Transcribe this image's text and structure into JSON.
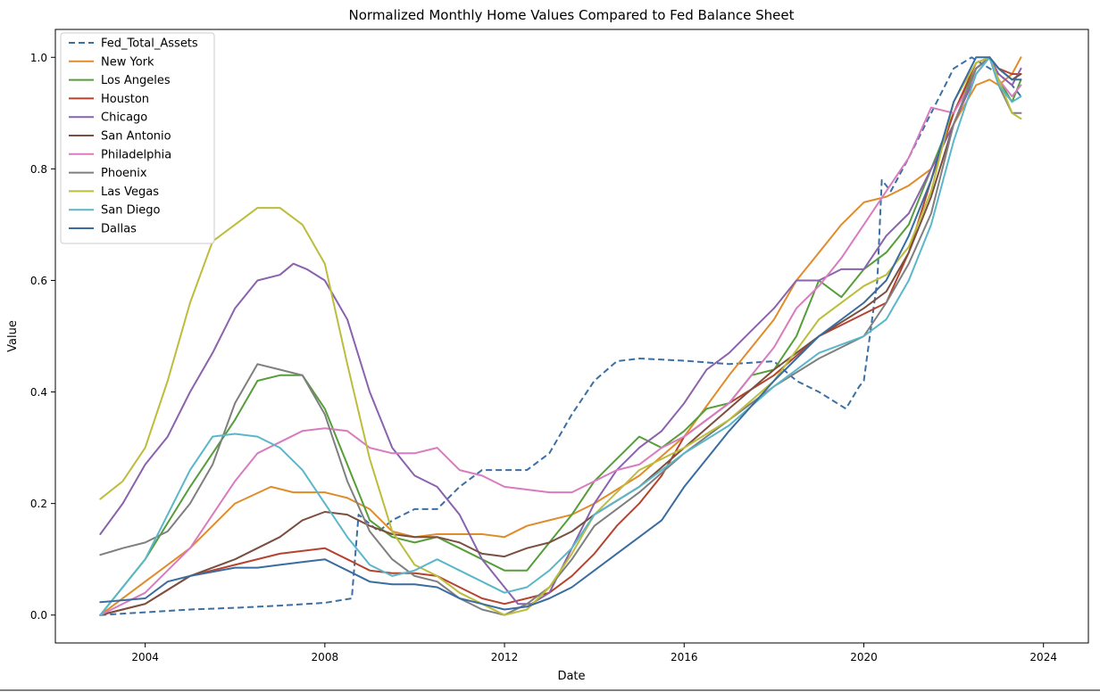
{
  "chart_data": {
    "type": "line",
    "title": "Normalized Monthly Home Values Compared to Fed Balance Sheet",
    "xlabel": "Date",
    "ylabel": "Value",
    "xlim": [
      2002.0,
      2025.0
    ],
    "ylim": [
      -0.05,
      1.05
    ],
    "x_ticks": [
      2004,
      2008,
      2012,
      2016,
      2020,
      2024
    ],
    "x_tick_labels": [
      "2004",
      "2008",
      "2012",
      "2016",
      "2020",
      "2024"
    ],
    "y_ticks": [
      0.0,
      0.2,
      0.4,
      0.6,
      0.8,
      1.0
    ],
    "y_tick_labels": [
      "0.0",
      "0.2",
      "0.4",
      "0.6",
      "0.8",
      "1.0"
    ],
    "grid": false,
    "legend_position": "upper-left",
    "series": [
      {
        "name": "Fed_Total_Assets",
        "color": "#3c6fa3",
        "dashed": true,
        "x": [
          2003.0,
          2004.0,
          2005.0,
          2006.0,
          2007.0,
          2008.0,
          2008.6,
          2008.75,
          2008.9,
          2009.2,
          2009.5,
          2010.0,
          2010.5,
          2011.0,
          2011.5,
          2012.0,
          2012.5,
          2013.0,
          2013.5,
          2014.0,
          2014.5,
          2015.0,
          2016.0,
          2017.0,
          2018.0,
          2018.5,
          2019.0,
          2019.6,
          2019.9,
          2020.0,
          2020.3,
          2020.4,
          2020.6,
          2021.0,
          2021.5,
          2022.0,
          2022.4,
          2022.6,
          2023.0,
          2023.3,
          2023.5
        ],
        "y": [
          0.0,
          0.005,
          0.01,
          0.013,
          0.017,
          0.022,
          0.03,
          0.18,
          0.17,
          0.15,
          0.17,
          0.19,
          0.19,
          0.23,
          0.26,
          0.26,
          0.26,
          0.29,
          0.36,
          0.42,
          0.455,
          0.46,
          0.456,
          0.45,
          0.455,
          0.42,
          0.4,
          0.37,
          0.41,
          0.42,
          0.6,
          0.78,
          0.76,
          0.82,
          0.9,
          0.98,
          1.0,
          0.99,
          0.97,
          0.95,
          0.93
        ]
      },
      {
        "name": "New York",
        "color": "#e08c2b",
        "x": [
          2003.0,
          2004.0,
          2005.0,
          2006.0,
          2006.8,
          2007.3,
          2008.0,
          2008.5,
          2009.0,
          2009.5,
          2010.0,
          2010.5,
          2011.0,
          2011.5,
          2012.0,
          2012.5,
          2013.0,
          2013.5,
          2014.0,
          2015.0,
          2016.0,
          2017.0,
          2018.0,
          2018.5,
          2019.0,
          2019.5,
          2020.0,
          2020.5,
          2021.0,
          2021.5,
          2022.0,
          2022.5,
          2022.8,
          2023.0,
          2023.3,
          2023.5
        ],
        "y": [
          0.0,
          0.06,
          0.12,
          0.2,
          0.23,
          0.22,
          0.22,
          0.21,
          0.19,
          0.15,
          0.14,
          0.145,
          0.145,
          0.145,
          0.14,
          0.16,
          0.17,
          0.18,
          0.2,
          0.25,
          0.32,
          0.43,
          0.53,
          0.6,
          0.65,
          0.7,
          0.74,
          0.75,
          0.77,
          0.8,
          0.88,
          0.95,
          0.96,
          0.95,
          0.97,
          1.0
        ]
      },
      {
        "name": "Los Angeles",
        "color": "#559e3a",
        "x": [
          2003.0,
          2004.0,
          2005.0,
          2006.0,
          2006.5,
          2007.0,
          2007.5,
          2008.0,
          2008.5,
          2009.0,
          2009.5,
          2010.0,
          2010.5,
          2011.0,
          2011.5,
          2012.0,
          2012.5,
          2013.0,
          2013.5,
          2014.0,
          2014.5,
          2015.0,
          2015.5,
          2016.0,
          2016.5,
          2017.0,
          2017.5,
          2018.0,
          2018.5,
          2019.0,
          2019.5,
          2020.0,
          2020.5,
          2021.0,
          2021.5,
          2022.0,
          2022.5,
          2022.8,
          2023.0,
          2023.3,
          2023.5
        ],
        "y": [
          0.0,
          0.1,
          0.23,
          0.35,
          0.42,
          0.43,
          0.43,
          0.37,
          0.27,
          0.17,
          0.14,
          0.13,
          0.14,
          0.12,
          0.1,
          0.08,
          0.08,
          0.13,
          0.18,
          0.24,
          0.28,
          0.32,
          0.3,
          0.33,
          0.37,
          0.38,
          0.43,
          0.44,
          0.5,
          0.6,
          0.57,
          0.62,
          0.65,
          0.7,
          0.8,
          0.9,
          0.98,
          1.0,
          0.96,
          0.92,
          0.96
        ]
      },
      {
        "name": "Houston",
        "color": "#b5432f",
        "x": [
          2003.0,
          2004.0,
          2005.0,
          2006.0,
          2007.0,
          2008.0,
          2008.5,
          2009.0,
          2009.5,
          2010.0,
          2010.5,
          2011.0,
          2011.5,
          2012.0,
          2012.5,
          2013.0,
          2013.5,
          2014.0,
          2014.5,
          2015.0,
          2015.5,
          2016.0,
          2017.0,
          2018.0,
          2019.0,
          2020.0,
          2020.5,
          2021.0,
          2021.5,
          2022.0,
          2022.5,
          2022.8,
          2023.0,
          2023.3,
          2023.5
        ],
        "y": [
          0.0,
          0.02,
          0.07,
          0.09,
          0.11,
          0.12,
          0.1,
          0.08,
          0.075,
          0.075,
          0.07,
          0.05,
          0.03,
          0.02,
          0.03,
          0.04,
          0.07,
          0.11,
          0.16,
          0.2,
          0.25,
          0.32,
          0.38,
          0.43,
          0.5,
          0.54,
          0.56,
          0.65,
          0.78,
          0.9,
          0.99,
          1.0,
          0.98,
          0.97,
          0.97
        ]
      },
      {
        "name": "Chicago",
        "color": "#8a62ad",
        "x": [
          2003.0,
          2003.5,
          2004.0,
          2004.5,
          2005.0,
          2005.5,
          2006.0,
          2006.5,
          2007.0,
          2007.3,
          2007.6,
          2008.0,
          2008.5,
          2009.0,
          2009.5,
          2010.0,
          2010.5,
          2011.0,
          2011.5,
          2012.0,
          2012.3,
          2012.6,
          2013.0,
          2013.5,
          2014.0,
          2014.5,
          2015.0,
          2015.5,
          2016.0,
          2016.5,
          2017.0,
          2017.5,
          2018.0,
          2018.5,
          2019.0,
          2019.5,
          2020.0,
          2020.5,
          2021.0,
          2021.5,
          2022.0,
          2022.5,
          2022.8,
          2023.0,
          2023.3,
          2023.5
        ],
        "y": [
          0.145,
          0.2,
          0.27,
          0.32,
          0.4,
          0.47,
          0.55,
          0.6,
          0.61,
          0.63,
          0.62,
          0.6,
          0.53,
          0.4,
          0.3,
          0.25,
          0.23,
          0.18,
          0.1,
          0.05,
          0.02,
          0.02,
          0.04,
          0.12,
          0.2,
          0.26,
          0.3,
          0.33,
          0.38,
          0.44,
          0.47,
          0.51,
          0.55,
          0.6,
          0.6,
          0.62,
          0.62,
          0.68,
          0.72,
          0.8,
          0.88,
          0.97,
          1.0,
          0.97,
          0.95,
          0.98
        ]
      },
      {
        "name": "San Antonio",
        "color": "#7b4f3f",
        "x": [
          2003.0,
          2004.0,
          2005.0,
          2006.0,
          2007.0,
          2007.5,
          2008.0,
          2008.5,
          2009.0,
          2009.5,
          2010.0,
          2010.5,
          2011.0,
          2011.5,
          2012.0,
          2012.5,
          2013.0,
          2013.5,
          2014.0,
          2015.0,
          2016.0,
          2017.0,
          2018.0,
          2019.0,
          2020.0,
          2020.5,
          2021.0,
          2021.5,
          2022.0,
          2022.5,
          2022.8,
          2023.0,
          2023.3,
          2023.5
        ],
        "y": [
          0.0,
          0.02,
          0.07,
          0.1,
          0.14,
          0.17,
          0.185,
          0.18,
          0.16,
          0.145,
          0.14,
          0.14,
          0.13,
          0.11,
          0.105,
          0.12,
          0.13,
          0.15,
          0.18,
          0.23,
          0.3,
          0.37,
          0.44,
          0.5,
          0.55,
          0.58,
          0.65,
          0.75,
          0.88,
          0.98,
          1.0,
          0.98,
          0.96,
          0.97
        ]
      },
      {
        "name": "Philadelphia",
        "color": "#d87cbf",
        "x": [
          2003.0,
          2004.0,
          2005.0,
          2006.0,
          2006.5,
          2007.0,
          2007.5,
          2008.0,
          2008.5,
          2009.0,
          2009.5,
          2010.0,
          2010.5,
          2011.0,
          2011.5,
          2012.0,
          2012.5,
          2013.0,
          2013.5,
          2014.0,
          2014.5,
          2015.0,
          2015.5,
          2016.0,
          2016.5,
          2017.0,
          2017.5,
          2018.0,
          2018.5,
          2019.0,
          2019.5,
          2020.0,
          2020.5,
          2021.0,
          2021.5,
          2022.0,
          2022.5,
          2022.8,
          2023.0,
          2023.3,
          2023.5
        ],
        "y": [
          0.0,
          0.04,
          0.12,
          0.24,
          0.29,
          0.31,
          0.33,
          0.335,
          0.33,
          0.3,
          0.29,
          0.29,
          0.3,
          0.26,
          0.25,
          0.23,
          0.225,
          0.22,
          0.22,
          0.24,
          0.26,
          0.27,
          0.3,
          0.32,
          0.35,
          0.38,
          0.43,
          0.48,
          0.55,
          0.59,
          0.64,
          0.7,
          0.76,
          0.82,
          0.91,
          0.9,
          0.97,
          1.0,
          0.96,
          0.93,
          0.95
        ]
      },
      {
        "name": "Phoenix",
        "color": "#7f7f7f",
        "x": [
          2003.0,
          2003.5,
          2004.0,
          2004.5,
          2005.0,
          2005.5,
          2006.0,
          2006.5,
          2007.0,
          2007.5,
          2008.0,
          2008.5,
          2009.0,
          2009.5,
          2010.0,
          2010.5,
          2011.0,
          2011.5,
          2012.0,
          2012.5,
          2013.0,
          2013.5,
          2014.0,
          2015.0,
          2016.0,
          2017.0,
          2018.0,
          2019.0,
          2020.0,
          2020.5,
          2021.0,
          2021.5,
          2022.0,
          2022.5,
          2022.8,
          2023.0,
          2023.3,
          2023.5
        ],
        "y": [
          0.108,
          0.12,
          0.13,
          0.15,
          0.2,
          0.27,
          0.38,
          0.45,
          0.44,
          0.43,
          0.36,
          0.24,
          0.15,
          0.1,
          0.07,
          0.06,
          0.03,
          0.01,
          0.0,
          0.02,
          0.05,
          0.1,
          0.16,
          0.22,
          0.29,
          0.35,
          0.41,
          0.46,
          0.5,
          0.56,
          0.63,
          0.72,
          0.88,
          0.98,
          1.0,
          0.95,
          0.9,
          0.9
        ]
      },
      {
        "name": "Las Vegas",
        "color": "#bcbd3a",
        "x": [
          2003.0,
          2003.5,
          2004.0,
          2004.5,
          2005.0,
          2005.5,
          2006.0,
          2006.5,
          2007.0,
          2007.5,
          2008.0,
          2008.5,
          2009.0,
          2009.5,
          2010.0,
          2010.5,
          2011.0,
          2011.5,
          2012.0,
          2012.5,
          2013.0,
          2013.5,
          2014.0,
          2015.0,
          2016.0,
          2017.0,
          2018.0,
          2019.0,
          2020.0,
          2020.5,
          2021.0,
          2021.5,
          2022.0,
          2022.5,
          2022.8,
          2023.0,
          2023.3,
          2023.5
        ],
        "y": [
          0.208,
          0.24,
          0.3,
          0.42,
          0.56,
          0.67,
          0.7,
          0.73,
          0.73,
          0.7,
          0.63,
          0.45,
          0.28,
          0.15,
          0.09,
          0.07,
          0.04,
          0.02,
          0.0,
          0.01,
          0.05,
          0.11,
          0.18,
          0.26,
          0.3,
          0.35,
          0.42,
          0.53,
          0.59,
          0.61,
          0.66,
          0.76,
          0.92,
          0.99,
          1.0,
          0.96,
          0.9,
          0.89
        ]
      },
      {
        "name": "San Diego",
        "color": "#5ab7c9",
        "x": [
          2003.0,
          2003.5,
          2004.0,
          2004.5,
          2005.0,
          2005.5,
          2006.0,
          2006.5,
          2007.0,
          2007.5,
          2008.0,
          2008.5,
          2009.0,
          2009.5,
          2010.0,
          2010.5,
          2011.0,
          2011.5,
          2012.0,
          2012.5,
          2013.0,
          2013.5,
          2014.0,
          2015.0,
          2016.0,
          2017.0,
          2018.0,
          2019.0,
          2020.0,
          2020.5,
          2021.0,
          2021.5,
          2022.0,
          2022.5,
          2022.8,
          2023.0,
          2023.3,
          2023.5
        ],
        "y": [
          0.0,
          0.05,
          0.1,
          0.18,
          0.26,
          0.32,
          0.325,
          0.32,
          0.3,
          0.26,
          0.2,
          0.14,
          0.09,
          0.07,
          0.08,
          0.1,
          0.08,
          0.06,
          0.04,
          0.05,
          0.08,
          0.12,
          0.18,
          0.23,
          0.29,
          0.34,
          0.41,
          0.47,
          0.5,
          0.53,
          0.6,
          0.7,
          0.85,
          0.97,
          1.0,
          0.95,
          0.92,
          0.93
        ]
      },
      {
        "name": "Dallas",
        "color": "#3a6ca0",
        "x": [
          2003.0,
          2004.0,
          2004.5,
          2005.0,
          2006.0,
          2006.5,
          2007.0,
          2007.5,
          2008.0,
          2008.5,
          2009.0,
          2009.5,
          2010.0,
          2010.5,
          2011.0,
          2011.5,
          2012.0,
          2012.5,
          2013.0,
          2013.5,
          2014.0,
          2014.5,
          2015.0,
          2015.5,
          2016.0,
          2017.0,
          2018.0,
          2019.0,
          2020.0,
          2020.5,
          2021.0,
          2021.5,
          2022.0,
          2022.5,
          2022.8,
          2023.0,
          2023.3,
          2023.5
        ],
        "y": [
          0.023,
          0.03,
          0.06,
          0.07,
          0.085,
          0.085,
          0.09,
          0.095,
          0.1,
          0.08,
          0.06,
          0.055,
          0.055,
          0.05,
          0.03,
          0.02,
          0.01,
          0.015,
          0.03,
          0.05,
          0.08,
          0.11,
          0.14,
          0.17,
          0.23,
          0.33,
          0.42,
          0.5,
          0.56,
          0.6,
          0.68,
          0.78,
          0.92,
          1.0,
          1.0,
          0.98,
          0.96,
          0.96
        ]
      }
    ]
  }
}
